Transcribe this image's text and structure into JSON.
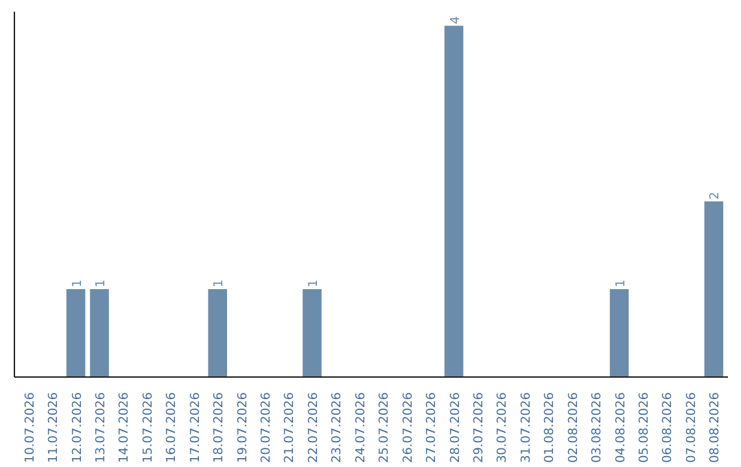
{
  "chart_data": {
    "type": "bar",
    "categories": [
      "10.07.2026",
      "11.07.2026",
      "12.07.2026",
      "13.07.2026",
      "14.07.2026",
      "15.07.2026",
      "16.07.2026",
      "17.07.2026",
      "18.07.2026",
      "19.07.2026",
      "20.07.2026",
      "21.07.2026",
      "22.07.2026",
      "23.07.2026",
      "24.07.2026",
      "25.07.2026",
      "26.07.2026",
      "27.07.2026",
      "28.07.2026",
      "29.07.2026",
      "30.07.2026",
      "31.07.2026",
      "01.08.2026",
      "02.08.2026",
      "03.08.2026",
      "04.08.2026",
      "05.08.2026",
      "06.08.2026",
      "07.08.2026",
      "08.08.2026"
    ],
    "values": [
      0,
      0,
      1,
      1,
      0,
      0,
      0,
      0,
      1,
      0,
      0,
      0,
      1,
      0,
      0,
      0,
      0,
      0,
      4,
      0,
      0,
      0,
      0,
      0,
      0,
      1,
      0,
      0,
      0,
      2
    ],
    "value_labels": [
      null,
      null,
      "1",
      "1",
      null,
      null,
      null,
      null,
      "1",
      null,
      null,
      null,
      "1",
      null,
      null,
      null,
      null,
      null,
      "4",
      null,
      null,
      null,
      null,
      null,
      null,
      "1",
      null,
      null,
      null,
      "2"
    ],
    "color": "#6b8cab",
    "tick_labels": "x",
    "grid": false
  }
}
